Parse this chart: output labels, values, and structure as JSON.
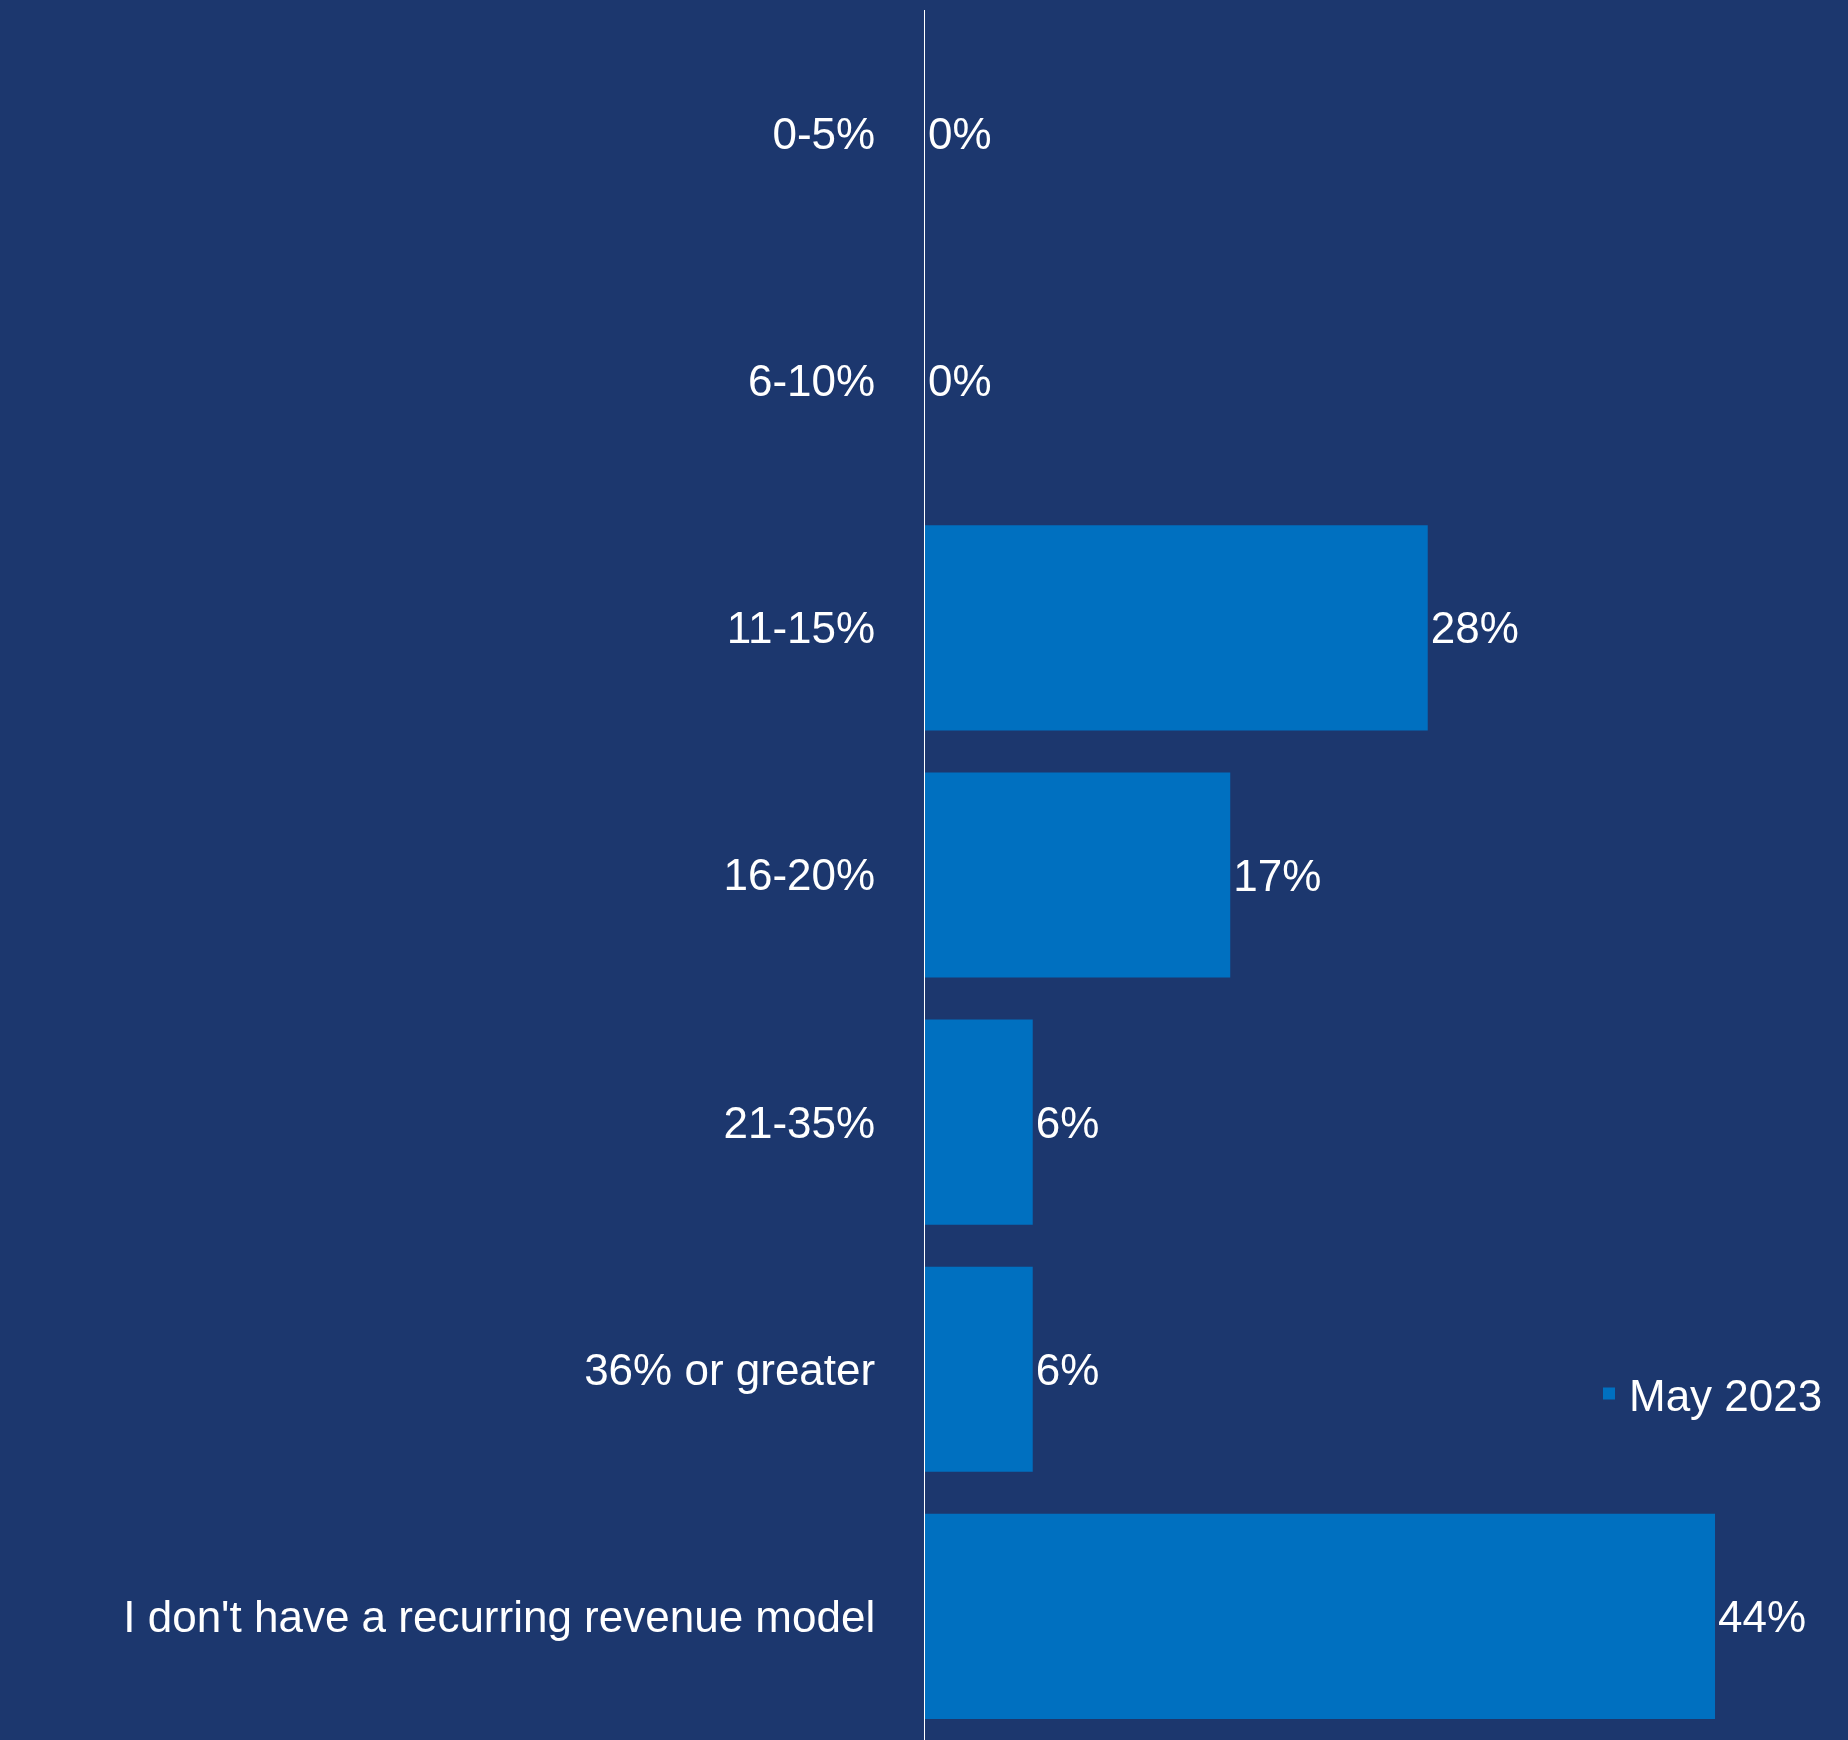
{
  "chart_data": {
    "type": "bar",
    "orientation": "horizontal",
    "categories": [
      "0-5%",
      "6-10%",
      "11-15%",
      "16-20%",
      "21-35%",
      "36% or greater",
      "I don't have a recurring revenue model"
    ],
    "series": [
      {
        "name": "May 2023",
        "color": "#0070c0",
        "values": [
          0,
          0,
          28,
          17,
          6,
          6,
          44
        ],
        "value_labels": [
          "0%",
          "0%",
          "28%",
          "17%",
          "6%",
          "6%",
          "44%"
        ]
      }
    ],
    "legend": "bottom right"
  }
}
